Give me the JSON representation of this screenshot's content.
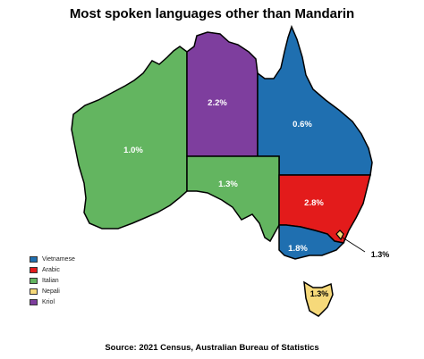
{
  "title": "Most spoken languages other than Mandarin",
  "source": "Source: 2021 Census, Australian Bureau of Statistics",
  "colors": {
    "Vietnamese": "#1f6fb0",
    "Arabic": "#e31b1b",
    "Italian": "#63b560",
    "Nepali": "#f6d97a",
    "Kriol": "#7e3e9e"
  },
  "legend": [
    {
      "label": "Vietnamese",
      "color": "#1f6fb0"
    },
    {
      "label": "Arabic",
      "color": "#e31b1b"
    },
    {
      "label": "Italian",
      "color": "#63b560"
    },
    {
      "label": "Nepali",
      "color": "#f6d97a"
    },
    {
      "label": "Kriol",
      "color": "#7e3e9e"
    }
  ],
  "regions": {
    "wa": {
      "language": "Italian",
      "value": "1.0%"
    },
    "nt": {
      "language": "Kriol",
      "value": "2.2%"
    },
    "qld": {
      "language": "Vietnamese",
      "value": "0.6%"
    },
    "sa": {
      "language": "Italian",
      "value": "1.3%"
    },
    "nsw": {
      "language": "Arabic",
      "value": "2.8%"
    },
    "vic": {
      "language": "Vietnamese",
      "value": "1.8%"
    },
    "act": {
      "language": "Nepali",
      "value": "1.3%"
    },
    "tas": {
      "language": "Nepali",
      "value": "1.3%"
    }
  }
}
